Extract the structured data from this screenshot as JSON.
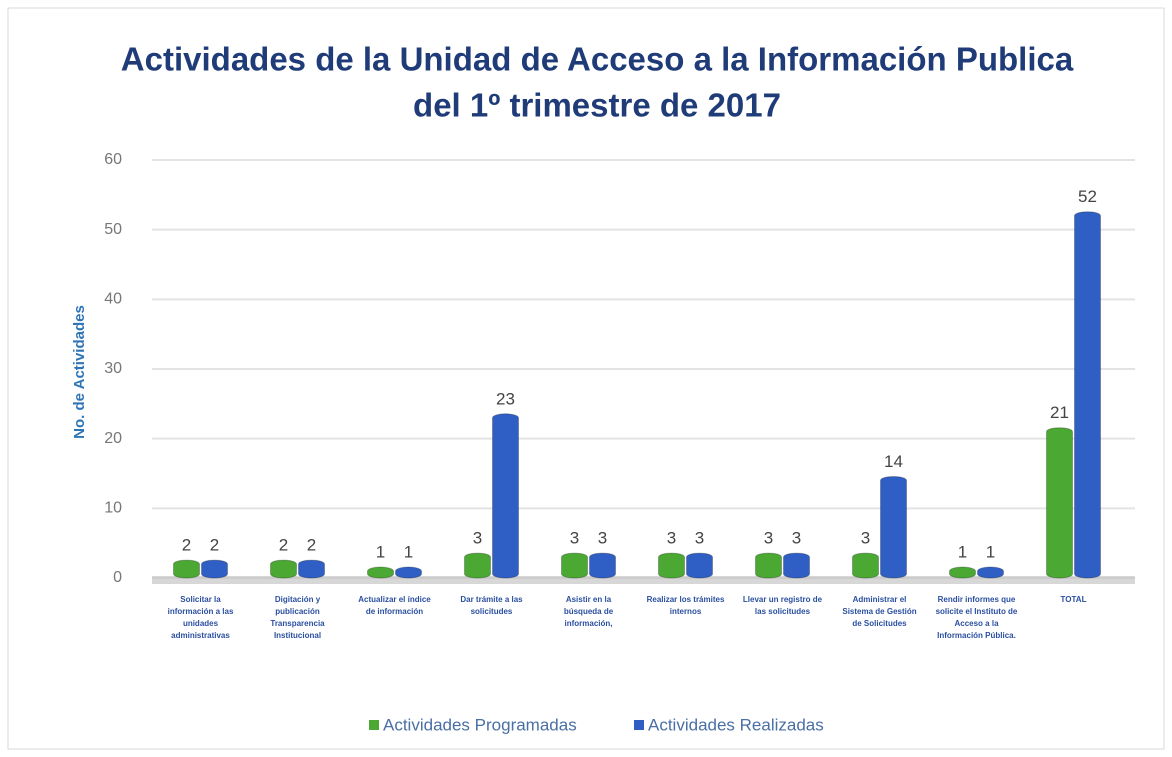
{
  "chart_data": {
    "type": "bar",
    "title": [
      "Actividades de la Unidad de Acceso a la Información Publica",
      "del 1º trimestre de 2017"
    ],
    "y_label": "No. de Actividades",
    "categories": [
      "Solicitar la información a las unidades administrativas",
      "Digitación y publicación Transparencia Institucional",
      "Actualizar el índice de información",
      "Dar trámite a las solicitudes",
      "Asistir en la búsqueda de información,",
      "Realizar los trámites internos",
      "Llevar un registro de las solicitudes",
      "Administrar el Sistema de Gestión de Solicitudes",
      "Rendir informes que solicite el Instituto de Acceso a la Información Pública.",
      "TOTAL"
    ],
    "series": [
      {
        "name": "Actividades Programadas",
        "color": "#4aa833",
        "values": [
          2,
          2,
          1,
          3,
          3,
          3,
          3,
          3,
          1,
          21
        ]
      },
      {
        "name": "Actividades Realizadas",
        "color": "#2f5fc4",
        "values": [
          2,
          2,
          1,
          23,
          3,
          3,
          3,
          14,
          1,
          52
        ]
      }
    ],
    "ylim": [
      0,
      60
    ],
    "yticks": [
      0,
      10,
      20,
      30,
      40,
      50,
      60
    ],
    "grid": true,
    "legend": "bottom"
  }
}
